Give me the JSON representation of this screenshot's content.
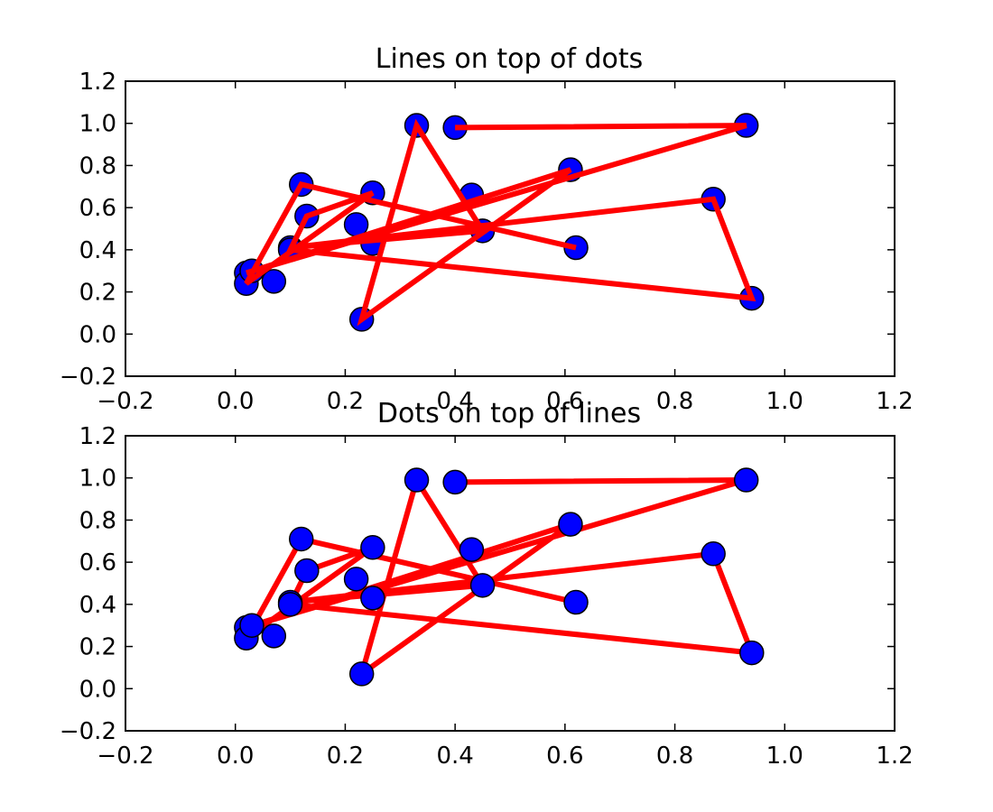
{
  "chart_data": [
    {
      "type": "scatter",
      "title": "Lines on top of dots",
      "draw_order": "lines-over-dots",
      "xlim": [
        -0.2,
        1.2
      ],
      "ylim": [
        -0.2,
        1.2
      ],
      "xticks": [
        "−0.2",
        "0.0",
        "0.2",
        "0.4",
        "0.6",
        "0.8",
        "1.0",
        "1.2"
      ],
      "yticks": [
        "−0.2",
        "0.0",
        "0.2",
        "0.4",
        "0.6",
        "0.8",
        "1.0",
        "1.2"
      ],
      "line_color": "#ff0000",
      "marker_color": "#0000ff",
      "x": [
        0.4,
        0.93,
        0.02,
        0.61,
        0.23,
        0.33,
        0.45,
        0.1,
        0.87,
        0.94,
        0.1,
        0.13,
        0.25,
        0.02,
        0.12,
        0.62
      ],
      "y": [
        0.98,
        0.99,
        0.29,
        0.78,
        0.07,
        0.99,
        0.49,
        0.41,
        0.64,
        0.17,
        0.4,
        0.56,
        0.67,
        0.24,
        0.71,
        0.41
      ],
      "extra_points": {
        "x": [
          0.07,
          0.03,
          0.22,
          0.43,
          0.25
        ],
        "y": [
          0.25,
          0.3,
          0.52,
          0.66,
          0.43
        ]
      }
    },
    {
      "type": "scatter",
      "title": "Dots on top of lines",
      "draw_order": "dots-over-lines",
      "xlim": [
        -0.2,
        1.2
      ],
      "ylim": [
        -0.2,
        1.2
      ],
      "xticks": [
        "−0.2",
        "0.0",
        "0.2",
        "0.4",
        "0.6",
        "0.8",
        "1.0",
        "1.2"
      ],
      "yticks": [
        "−0.2",
        "0.0",
        "0.2",
        "0.4",
        "0.6",
        "0.8",
        "1.0",
        "1.2"
      ],
      "line_color": "#ff0000",
      "marker_color": "#0000ff",
      "x": [
        0.4,
        0.93,
        0.02,
        0.61,
        0.23,
        0.33,
        0.45,
        0.1,
        0.87,
        0.94,
        0.1,
        0.13,
        0.25,
        0.02,
        0.12,
        0.62
      ],
      "y": [
        0.98,
        0.99,
        0.29,
        0.78,
        0.07,
        0.99,
        0.49,
        0.41,
        0.64,
        0.17,
        0.4,
        0.56,
        0.67,
        0.24,
        0.71,
        0.41
      ],
      "extra_points": {
        "x": [
          0.07,
          0.03,
          0.22,
          0.43,
          0.25
        ],
        "y": [
          0.25,
          0.3,
          0.52,
          0.66,
          0.43
        ]
      }
    }
  ]
}
